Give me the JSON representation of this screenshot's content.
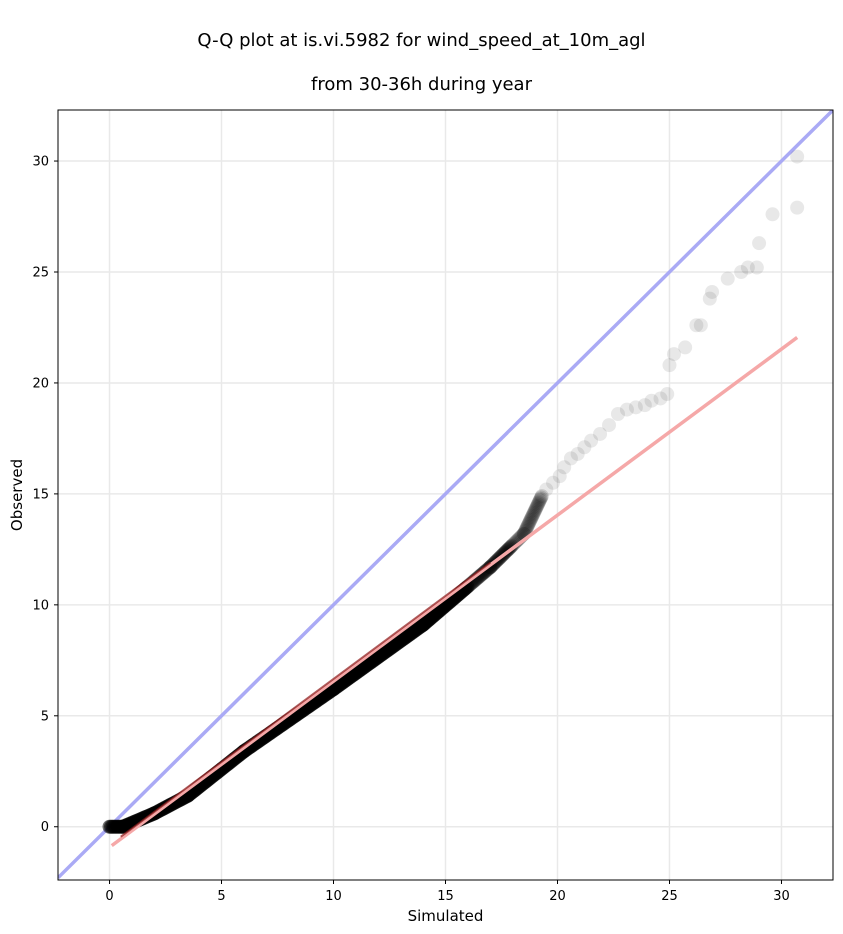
{
  "chart_data": {
    "type": "scatter",
    "title_line1": "Q-Q plot at is.vi.5982 for wind_speed_at_10m_agl",
    "title_line2": "from 30-36h during year",
    "xlabel": "Simulated",
    "ylabel": "Observed",
    "xlim": [
      -2.3,
      32.3
    ],
    "ylim": [
      -2.4,
      32.3
    ],
    "xticks": [
      0,
      5,
      10,
      15,
      20,
      25,
      30
    ],
    "yticks": [
      0,
      5,
      10,
      15,
      20,
      25,
      30
    ],
    "grid": true,
    "identity_line": {
      "color": "#aaaaf5",
      "from": [
        -2.3,
        -2.3
      ],
      "to": [
        32.3,
        32.3
      ]
    },
    "fit_line": {
      "color": "#f5a8a8",
      "from": [
        0.1,
        -0.85
      ],
      "to": [
        30.7,
        22.05
      ]
    },
    "fit_overlay": {
      "color": "#8b1a1a",
      "from": [
        0.5,
        -0.45
      ],
      "to": [
        17.0,
        11.9
      ]
    },
    "point_color": "#000000",
    "dense_segments": [
      {
        "x": [
          0.0,
          0.6
        ],
        "y": [
          0.0,
          0.0
        ]
      },
      {
        "x": [
          0.6,
          2.0
        ],
        "y": [
          0.0,
          0.6
        ]
      },
      {
        "x": [
          2.0,
          3.5
        ],
        "y": [
          0.6,
          1.4
        ]
      },
      {
        "x": [
          3.5,
          6.0
        ],
        "y": [
          1.4,
          3.4
        ]
      },
      {
        "x": [
          6.0,
          10.0
        ],
        "y": [
          3.4,
          6.2
        ]
      },
      {
        "x": [
          10.0,
          14.0
        ],
        "y": [
          6.2,
          9.1
        ]
      },
      {
        "x": [
          14.0,
          17.0
        ],
        "y": [
          9.1,
          11.7
        ]
      },
      {
        "x": [
          17.0,
          18.5
        ],
        "y": [
          11.7,
          13.2
        ]
      },
      {
        "x": [
          18.5,
          19.3
        ],
        "y": [
          13.2,
          14.9
        ]
      }
    ],
    "points": [
      [
        19.5,
        15.2
      ],
      [
        19.8,
        15.5
      ],
      [
        20.1,
        15.8
      ],
      [
        20.3,
        16.2
      ],
      [
        20.6,
        16.6
      ],
      [
        20.9,
        16.8
      ],
      [
        21.2,
        17.1
      ],
      [
        21.5,
        17.4
      ],
      [
        21.9,
        17.7
      ],
      [
        22.3,
        18.1
      ],
      [
        22.7,
        18.6
      ],
      [
        23.1,
        18.8
      ],
      [
        23.5,
        18.9
      ],
      [
        23.9,
        19.0
      ],
      [
        24.2,
        19.2
      ],
      [
        24.6,
        19.3
      ],
      [
        24.9,
        19.5
      ],
      [
        25.0,
        20.8
      ],
      [
        25.2,
        21.3
      ],
      [
        25.7,
        21.6
      ],
      [
        26.2,
        22.6
      ],
      [
        26.4,
        22.6
      ],
      [
        26.8,
        23.8
      ],
      [
        26.9,
        24.1
      ],
      [
        27.6,
        24.7
      ],
      [
        28.2,
        25.0
      ],
      [
        28.5,
        25.2
      ],
      [
        28.9,
        25.2
      ],
      [
        29.0,
        26.3
      ],
      [
        29.6,
        27.6
      ],
      [
        30.7,
        27.9
      ],
      [
        30.7,
        30.2
      ]
    ]
  }
}
